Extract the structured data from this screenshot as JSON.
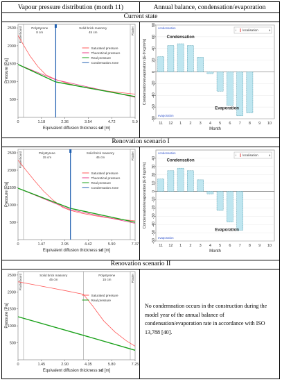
{
  "headers": {
    "left": "Vapour pressure distribution (month 11)",
    "right": "Annual balance, condensation/evaporation"
  },
  "sections": [
    {
      "title": "Current state"
    },
    {
      "title": "Renovation scenario I"
    },
    {
      "title": "Renovation scenario II"
    }
  ],
  "pressure_charts": [
    {
      "type": "line",
      "ylabel": "Pressure [Pa]",
      "xlabel": "Equivalent diffusion thickness",
      "xlabel_symbol": "sd",
      "xlabel_unit": "[m]",
      "ylim": [
        0,
        2600
      ],
      "yticks": [
        "2500",
        "2000",
        "1500",
        "1000",
        "500"
      ],
      "xticks": [
        "0",
        "1.18",
        "2.36",
        "3.54",
        "4.72",
        "5.9"
      ],
      "xmax": 5.9,
      "layer_labels": [
        {
          "name": "Plasterboard",
          "vertical": true
        },
        {
          "name": "Polystyrene",
          "thickness": "8 cm"
        },
        {
          "name": "Solid brick masonry",
          "thickness": "45 cm"
        },
        {
          "name": "Plaster",
          "vertical": true
        }
      ],
      "boundary": 1.9,
      "condensation_zone": 1.9,
      "legend": [
        "Saturated pressure",
        "Theoretical pressure",
        "Real pressure",
        "Condensation zone"
      ],
      "colors": {
        "saturated": "#ff5a5a",
        "theoretical": "#e83f8a",
        "real": "#18a018",
        "zone": "#1f5fb0"
      },
      "series": [
        {
          "name": "Saturated pressure",
          "x": [
            0,
            0.3,
            0.6,
            1.0,
            1.4,
            1.9,
            2.5,
            3.0,
            3.6,
            4.2,
            4.8,
            5.4,
            5.9
          ],
          "y": [
            2290,
            2000,
            1720,
            1420,
            1190,
            1060,
            950,
            880,
            810,
            760,
            715,
            680,
            650
          ]
        },
        {
          "name": "Theoretical pressure",
          "x": [
            0,
            1.9,
            5.9
          ],
          "y": [
            1480,
            1050,
            560
          ]
        },
        {
          "name": "Real pressure",
          "x": [
            0,
            1.9,
            5.9
          ],
          "y": [
            1480,
            990,
            580
          ]
        }
      ]
    },
    {
      "type": "line",
      "ylabel": "Pressure [Pa]",
      "xlabel": "Equivalent diffusion thickness",
      "xlabel_symbol": "sd",
      "xlabel_unit": "[m]",
      "ylim": [
        0,
        2600
      ],
      "yticks": [
        "2500",
        "2000",
        "1500",
        "1000",
        "500"
      ],
      "xticks": [
        "0",
        "1.47",
        "2.95",
        "4.42",
        "5.90",
        "7.37"
      ],
      "xmax": 7.37,
      "layer_labels": [
        {
          "name": "Plasterboard",
          "vertical": true
        },
        {
          "name": "Polystyrene",
          "thickness": "15 cm"
        },
        {
          "name": "Solid brick masonry",
          "thickness": "45 cm"
        },
        {
          "name": "Plaster",
          "vertical": true
        }
      ],
      "boundary": 3.3,
      "condensation_zone": 3.3,
      "legend": [
        "Saturated pressure",
        "Theoretical pressure",
        "Real pressure",
        "Condensation zone"
      ],
      "colors": {
        "saturated": "#ff5a5a",
        "theoretical": "#e83f8a",
        "real": "#18a018",
        "zone": "#1f5fb0"
      },
      "series": [
        {
          "name": "Saturated pressure",
          "x": [
            0,
            0.5,
            1.0,
            1.6,
            2.2,
            2.8,
            3.3,
            4.0,
            4.8,
            5.6,
            6.4,
            7.37
          ],
          "y": [
            2290,
            2000,
            1720,
            1400,
            1140,
            930,
            840,
            760,
            690,
            630,
            585,
            540
          ]
        },
        {
          "name": "Theoretical pressure",
          "x": [
            0,
            3.3,
            7.37
          ],
          "y": [
            1480,
            860,
            470
          ]
        },
        {
          "name": "Real pressure",
          "x": [
            0,
            3.3,
            7.37
          ],
          "y": [
            1480,
            900,
            500
          ]
        }
      ]
    },
    {
      "type": "line",
      "ylabel": "Pressure [Pa]",
      "xlabel": "Equivalent diffusion thickness",
      "xlabel_symbol": "sd",
      "xlabel_unit": "[m]",
      "ylim": [
        0,
        2600
      ],
      "yticks": [
        "2500",
        "2000",
        "1500",
        "1000",
        "500"
      ],
      "xticks": [
        "0",
        "1.45",
        "2.90",
        "4.35",
        "5.80",
        "7.25"
      ],
      "xmax": 7.25,
      "layer_labels": [
        {
          "name": "Plasterboard",
          "vertical": true
        },
        {
          "name": "Solid brick masonry",
          "thickness": "45 cm"
        },
        {
          "name": "Polystyrene",
          "thickness": "15 cm"
        },
        {
          "name": "Plaster",
          "vertical": true
        }
      ],
      "boundary": 4.05,
      "legend": [
        "Saturated pressure",
        "Real pressure"
      ],
      "colors": {
        "saturated": "#ff5a5a",
        "real": "#18a018"
      },
      "series": [
        {
          "name": "Saturated pressure",
          "x": [
            0,
            1.0,
            2.0,
            3.0,
            4.05,
            4.6,
            5.3,
            6.0,
            6.7,
            7.25
          ],
          "y": [
            2300,
            2210,
            2120,
            2030,
            1930,
            1600,
            1150,
            820,
            560,
            400
          ]
        },
        {
          "name": "Real pressure",
          "x": [
            0,
            4.05,
            7.25
          ],
          "y": [
            1270,
            720,
            280
          ]
        }
      ]
    }
  ],
  "balance_charts": [
    {
      "type": "bar",
      "ylabel": "Condensation/evaporation [E-9 kg/m²s]",
      "xlabel": "Month",
      "categories": [
        "11",
        "12",
        "1",
        "2",
        "3",
        "4",
        "5",
        "6",
        "7",
        "8",
        "9",
        "10"
      ],
      "values": [
        26,
        45,
        48,
        45,
        25,
        -3,
        -33,
        -57,
        -75,
        -70,
        0,
        0
      ],
      "ylim": [
        -80,
        80
      ],
      "yticks": [
        "80",
        "60",
        "40",
        "20",
        "0",
        "-20",
        "-40",
        "-60",
        "-80"
      ],
      "tick_values": [
        80,
        60,
        40,
        20,
        0,
        -20,
        -40,
        -60,
        -80
      ],
      "corner_top": "condensation",
      "corner_bottom": "evaporation",
      "region_top": "Condensation",
      "region_bottom": "Evaporation",
      "legend": "localisation",
      "legend_left": "i",
      "legend_right": "e",
      "bar_color": "#bfe6f0"
    },
    {
      "type": "bar",
      "ylabel": "Condensation/evaporation [E-9 kg/m²s]",
      "xlabel": "Month",
      "categories": [
        "11",
        "12",
        "1",
        "2",
        "3",
        "4",
        "5",
        "6",
        "7",
        "8",
        "9",
        "10"
      ],
      "values": [
        15,
        25,
        28,
        25,
        14,
        -3,
        -23,
        -37,
        -47,
        0,
        0,
        0
      ],
      "ylim": [
        -60,
        50
      ],
      "yticks": [
        "40",
        "30",
        "20",
        "10",
        "0",
        "-10",
        "-20",
        "-30",
        "-40",
        "-50",
        "-60"
      ],
      "tick_values": [
        40,
        30,
        20,
        10,
        0,
        -10,
        -20,
        -30,
        -40,
        -50,
        -60
      ],
      "corner_top": "condensation",
      "corner_bottom": "evaporation",
      "region_top": "Condensation",
      "region_bottom": "Evaporation",
      "legend": "localisation",
      "legend_left": "i",
      "legend_right": "e",
      "bar_color": "#bfe6f0"
    }
  ],
  "scenario2_note": "No condemnation occurs in the construction during the model year of the annual balance of condensation/evaporation rate in accordance with ISO 13,788 [40]."
}
